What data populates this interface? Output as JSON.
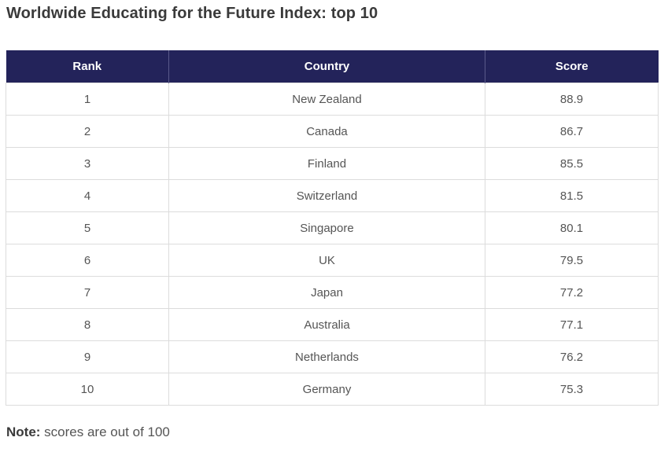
{
  "title": "Worldwide Educating for the Future Index: top 10",
  "table": {
    "headers": [
      "Rank",
      "Country",
      "Score"
    ],
    "rows": [
      [
        "1",
        "New Zealand",
        "88.9"
      ],
      [
        "2",
        "Canada",
        "86.7"
      ],
      [
        "3",
        "Finland",
        "85.5"
      ],
      [
        "4",
        "Switzerland",
        "81.5"
      ],
      [
        "5",
        "Singapore",
        "80.1"
      ],
      [
        "6",
        "UK",
        "79.5"
      ],
      [
        "7",
        "Japan",
        "77.2"
      ],
      [
        "8",
        "Australia",
        "77.1"
      ],
      [
        "9",
        "Netherlands",
        "76.2"
      ],
      [
        "10",
        "Germany",
        "75.3"
      ]
    ]
  },
  "note": {
    "label": "Note:",
    "text": " scores are out of 100"
  },
  "colors": {
    "header_background": "#23235a",
    "header_text": "#ffffff",
    "body_text": "#555555",
    "border": "#dcdcdc"
  }
}
